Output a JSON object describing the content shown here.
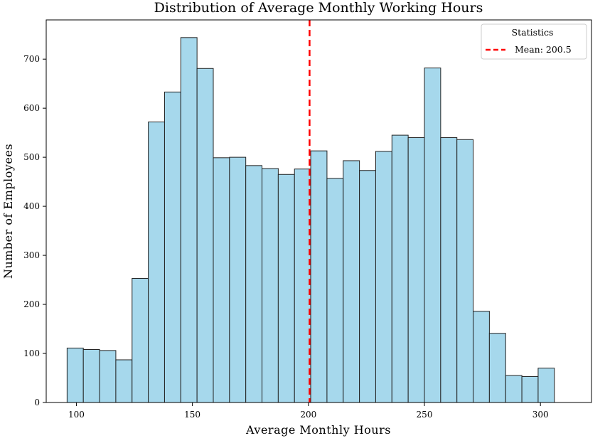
{
  "chart_data": {
    "type": "bar",
    "title": "Distribution of Average Monthly Working Hours",
    "xlabel": "Average Monthly Hours",
    "ylabel": "Number of Employees",
    "xlim": [
      87,
      322
    ],
    "ylim": [
      0,
      780
    ],
    "xticks": [
      100,
      150,
      200,
      250,
      300
    ],
    "yticks": [
      0,
      100,
      200,
      300,
      400,
      500,
      600,
      700
    ],
    "bin_width": 7,
    "bins": [
      {
        "start": 96,
        "end": 103,
        "count": 111
      },
      {
        "start": 103,
        "end": 110,
        "count": 108
      },
      {
        "start": 110,
        "end": 117,
        "count": 106
      },
      {
        "start": 117,
        "end": 124,
        "count": 87
      },
      {
        "start": 124,
        "end": 131,
        "count": 253
      },
      {
        "start": 131,
        "end": 138,
        "count": 572
      },
      {
        "start": 138,
        "end": 145,
        "count": 633
      },
      {
        "start": 145,
        "end": 152,
        "count": 744
      },
      {
        "start": 152,
        "end": 159,
        "count": 681
      },
      {
        "start": 159,
        "end": 166,
        "count": 499
      },
      {
        "start": 166,
        "end": 173,
        "count": 500
      },
      {
        "start": 173,
        "end": 180,
        "count": 483
      },
      {
        "start": 180,
        "end": 187,
        "count": 477
      },
      {
        "start": 187,
        "end": 194,
        "count": 465
      },
      {
        "start": 194,
        "end": 201,
        "count": 476
      },
      {
        "start": 201,
        "end": 208,
        "count": 513
      },
      {
        "start": 208,
        "end": 215,
        "count": 457
      },
      {
        "start": 215,
        "end": 222,
        "count": 493
      },
      {
        "start": 222,
        "end": 229,
        "count": 473
      },
      {
        "start": 229,
        "end": 236,
        "count": 512
      },
      {
        "start": 236,
        "end": 243,
        "count": 545
      },
      {
        "start": 243,
        "end": 250,
        "count": 540
      },
      {
        "start": 250,
        "end": 257,
        "count": 682
      },
      {
        "start": 257,
        "end": 264,
        "count": 540
      },
      {
        "start": 264,
        "end": 271,
        "count": 536
      },
      {
        "start": 271,
        "end": 278,
        "count": 186
      },
      {
        "start": 278,
        "end": 285,
        "count": 141
      },
      {
        "start": 285,
        "end": 292,
        "count": 55
      },
      {
        "start": 292,
        "end": 299,
        "count": 53
      },
      {
        "start": 299,
        "end": 306,
        "count": 70
      }
    ],
    "mean_line": {
      "value": 200.5,
      "label": "Mean: 200.5",
      "color": "#ff0000",
      "style": "dashed"
    },
    "legend": {
      "title": "Statistics",
      "placement": "top-right"
    },
    "colors": {
      "bar_fill": "#a6d8ec",
      "bar_edge": "#222222"
    },
    "grid": false
  }
}
